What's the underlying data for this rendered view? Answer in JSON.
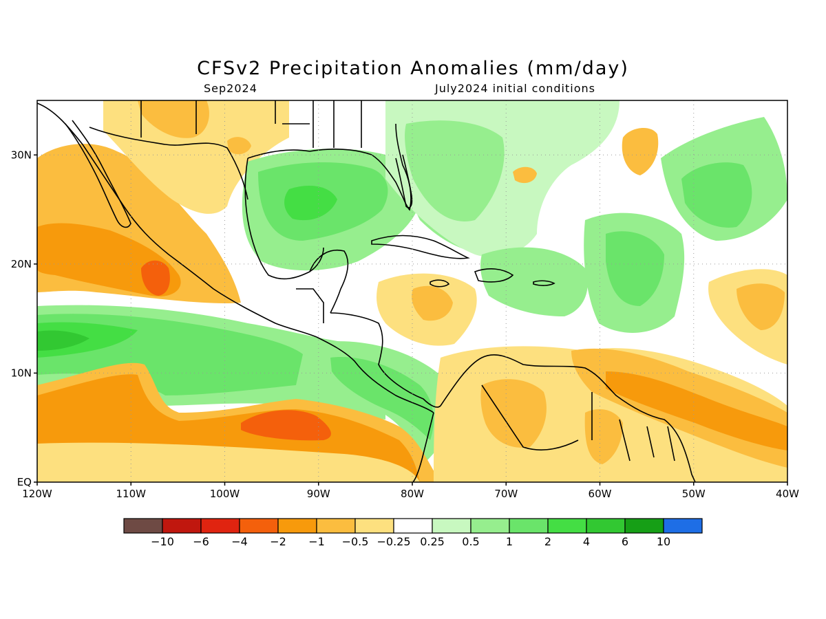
{
  "title": "CFSv2 Precipitation Anomalies (mm/day)",
  "subtitle_left": "Sep2024",
  "subtitle_right": "July2024 initial conditions",
  "map": {
    "lon_range": [
      -120,
      -40
    ],
    "lat_range": [
      0,
      35
    ],
    "x_ticks": [
      {
        "lon": -120,
        "label": "120W"
      },
      {
        "lon": -110,
        "label": "110W"
      },
      {
        "lon": -100,
        "label": "100W"
      },
      {
        "lon": -90,
        "label": "90W"
      },
      {
        "lon": -80,
        "label": "80W"
      },
      {
        "lon": -70,
        "label": "70W"
      },
      {
        "lon": -60,
        "label": "60W"
      },
      {
        "lon": -50,
        "label": "50W"
      },
      {
        "lon": -40,
        "label": "40W"
      }
    ],
    "y_ticks": [
      {
        "lat": 0,
        "label": "EQ"
      },
      {
        "lat": 10,
        "label": "10N"
      },
      {
        "lat": 20,
        "label": "20N"
      },
      {
        "lat": 30,
        "label": "30N"
      }
    ]
  },
  "colorbar": {
    "colors": [
      "#6e4a44",
      "#c0170e",
      "#e02410",
      "#f4600c",
      "#f79a0c",
      "#fbbd3f",
      "#fde07f",
      "#ffffff",
      "#c8f8c0",
      "#96ee8e",
      "#6ae46a",
      "#44de44",
      "#32c832",
      "#169f16",
      "#1e6ee6"
    ],
    "labels": [
      "−10",
      "−6",
      "−4",
      "−2",
      "−1",
      "−0.5",
      "−0.25",
      "0.25",
      "0.5",
      "1",
      "2",
      "4",
      "6",
      "10"
    ]
  }
}
